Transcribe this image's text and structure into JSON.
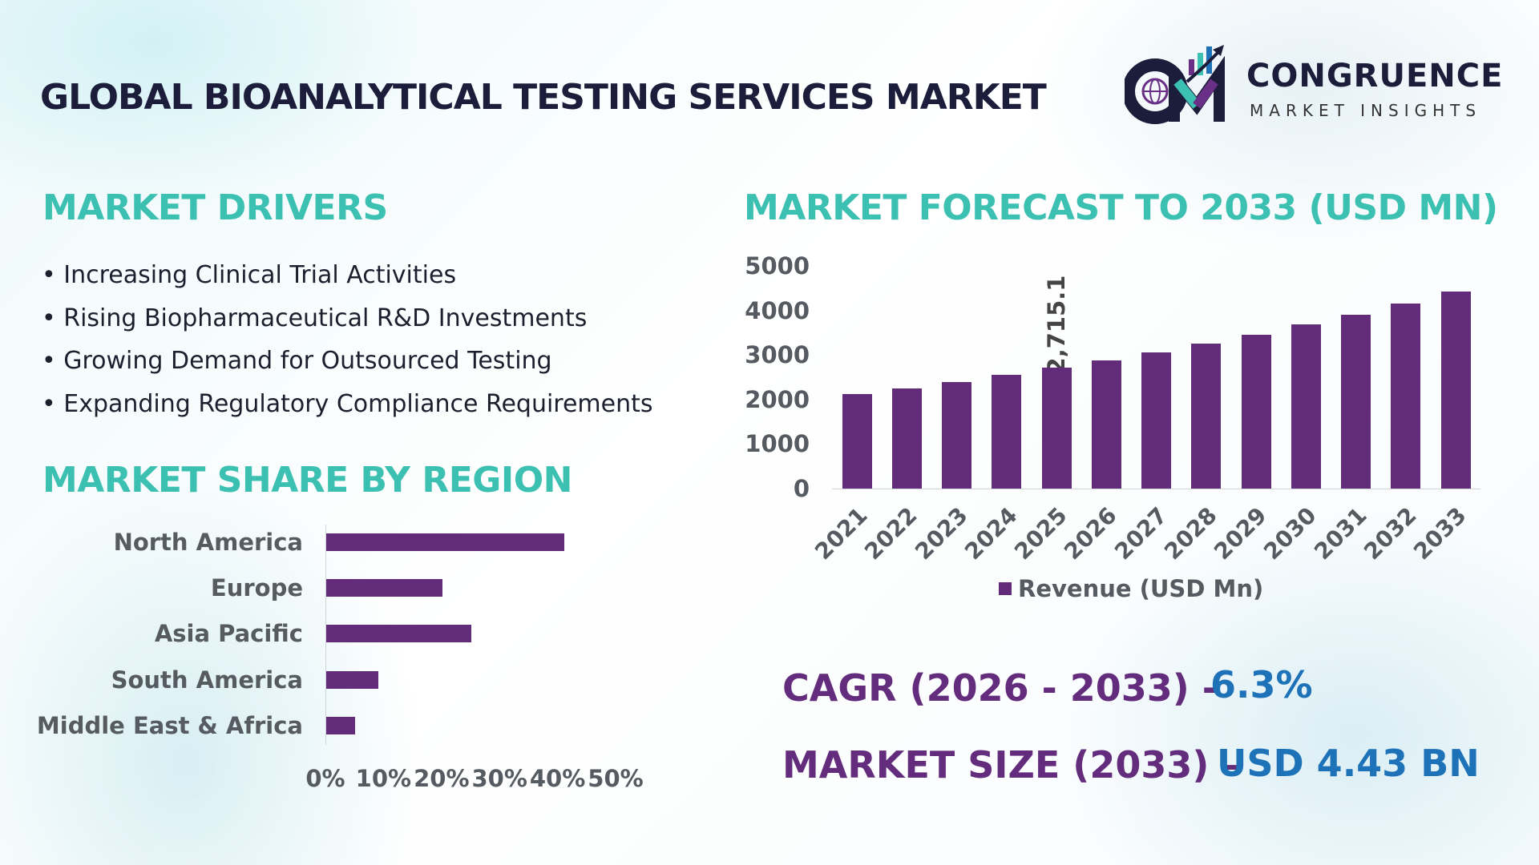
{
  "header": {
    "title": "GLOBAL BIOANALYTICAL TESTING SERVICES MARKET",
    "logo": {
      "name": "CONGRUENCE",
      "tagline": "MARKET INSIGHTS"
    }
  },
  "drivers": {
    "title": "MARKET DRIVERS",
    "items": [
      "Increasing Clinical Trial Activities",
      "Rising Biopharmaceutical R&D Investments",
      "Growing Demand for Outsourced Testing",
      "Expanding Regulatory Compliance Requirements"
    ]
  },
  "colors": {
    "bar": "#622c7a",
    "heading": "#3cc0b2",
    "kpi_label": "#632c7c",
    "kpi_value": "#1d72b8"
  },
  "chart_data": [
    {
      "type": "bar",
      "orientation": "horizontal",
      "title": "MARKET SHARE BY REGION",
      "categories": [
        "North America",
        "Europe",
        "Asia Pacific",
        "South America",
        "Middle East & Africa"
      ],
      "values": [
        41,
        20,
        25,
        9,
        5
      ],
      "unit": "%",
      "xlim": [
        0,
        50
      ],
      "xticks": [
        "0%",
        "10%",
        "20%",
        "30%",
        "40%",
        "50%"
      ]
    },
    {
      "type": "bar",
      "title": "MARKET FORECAST TO 2033 (USD MN)",
      "categories": [
        "2021",
        "2022",
        "2023",
        "2024",
        "2025",
        "2026",
        "2027",
        "2028",
        "2029",
        "2030",
        "2031",
        "2032",
        "2033"
      ],
      "series": [
        {
          "name": "Revenue (USD Mn)",
          "values": [
            2120,
            2245,
            2390,
            2550,
            2715.1,
            2870,
            3050,
            3250,
            3450,
            3680,
            3900,
            4150,
            4430
          ]
        }
      ],
      "data_labels": {
        "2025": "2,715.1"
      },
      "ylim": [
        0,
        5000
      ],
      "yticks": [
        "0",
        "1000",
        "2000",
        "3000",
        "4000",
        "5000"
      ],
      "legend": "bottom"
    }
  ],
  "kpis": {
    "cagr_label": "CAGR (2026 - 2033) -",
    "cagr_value": "6.3%",
    "size_label": "MARKET SIZE (2033) –",
    "size_value": "USD 4.43 BN"
  }
}
